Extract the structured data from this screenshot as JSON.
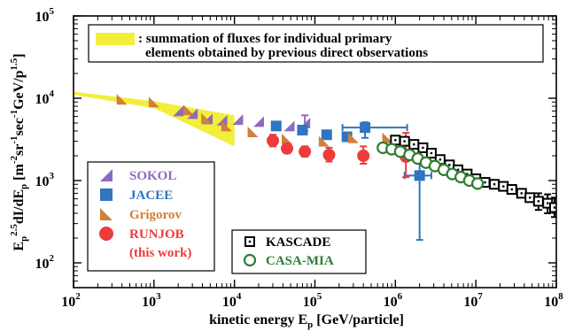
{
  "chart_data": {
    "type": "scatter",
    "xscale": "log",
    "yscale": "log",
    "xlim": [
      100,
      100000000
    ],
    "ylim": [
      50,
      100000
    ],
    "x_ticks": [
      "10^2",
      "10^3",
      "10^4",
      "10^5",
      "10^6",
      "10^7",
      "10^8"
    ],
    "y_ticks": [
      "10^2",
      "10^3",
      "10^4",
      "10^5"
    ],
    "xlabel": "kinetic energy E_p [GeV/particle]",
    "ylabel": "E_p^2.5 dI/dE_p [m^-2 sr^-1 sec^-1 GeV/p^1.5]",
    "band": {
      "label": ": summation of fluxes for individual primary elements obtained by previous direct observations",
      "color": "#f2ee3a",
      "upper": [
        [
          100,
          12000
        ],
        [
          1000,
          9200
        ],
        [
          10000,
          6200
        ]
      ],
      "lower": [
        [
          100,
          11000
        ],
        [
          1000,
          7600
        ],
        [
          10000,
          2600
        ]
      ]
    },
    "series": [
      {
        "name": "SOKOL",
        "marker": "triangle-ul",
        "color": "#8e6bbf",
        "points": [
          {
            "x": 2000,
            "y": 7000
          },
          {
            "x": 3000,
            "y": 6500
          },
          {
            "x": 4600,
            "y": 5600
          },
          {
            "x": 7000,
            "y": 5400
          },
          {
            "x": 11000,
            "y": 5500
          },
          {
            "x": 20000,
            "y": 5200
          },
          {
            "x": 48000,
            "y": 4600
          },
          {
            "x": 75000,
            "y": 5000,
            "err": [
              4000,
              6200
            ]
          }
        ]
      },
      {
        "name": "JACEE",
        "marker": "square",
        "color": "#2f75c0",
        "points": [
          {
            "x": 33000,
            "y": 4600
          },
          {
            "x": 70000,
            "y": 4100
          },
          {
            "x": 140000,
            "y": 3600
          },
          {
            "x": 250000,
            "y": 3400
          },
          {
            "x": 420000,
            "y": 4400,
            "err": [
              3300,
              5100
            ],
            "xerr": [
              220000,
              1400000
            ]
          },
          {
            "x": 2000000,
            "y": 1150,
            "err": [
              190,
              1800
            ],
            "xerr": [
              1300000,
              2800000
            ]
          }
        ]
      },
      {
        "name": "Grigorov",
        "marker": "triangle-lr",
        "color": "#d07f3c",
        "points": [
          {
            "x": 400,
            "y": 9700
          },
          {
            "x": 1000,
            "y": 9000
          },
          {
            "x": 2700,
            "y": 7200
          },
          {
            "x": 4500,
            "y": 5700
          },
          {
            "x": 8000,
            "y": 4600
          },
          {
            "x": 17000,
            "y": 3900
          },
          {
            "x": 45000,
            "y": 3200
          },
          {
            "x": 130000,
            "y": 3000
          },
          {
            "x": 300000,
            "y": 3300
          },
          {
            "x": 800000,
            "y": 3300
          }
        ]
      },
      {
        "name": "RUNJOB",
        "name2": "(this work)",
        "marker": "circle",
        "color": "#ee3b3b",
        "points": [
          {
            "x": 30000,
            "y": 3050,
            "err": [
              2600,
              3600
            ]
          },
          {
            "x": 45000,
            "y": 2450,
            "err": [
              2150,
              2800
            ]
          },
          {
            "x": 75000,
            "y": 2250,
            "err": [
              1950,
              2600
            ]
          },
          {
            "x": 150000,
            "y": 2050,
            "err": [
              1700,
              2500
            ]
          },
          {
            "x": 400000,
            "y": 2000,
            "err": [
              1600,
              2600
            ]
          },
          {
            "x": 1350000,
            "y": 1950,
            "err": [
              1100,
              3800
            ]
          }
        ]
      },
      {
        "name": "KASCADE",
        "marker": "square-dot",
        "color": "#000000",
        "points": [
          {
            "x": 1000000,
            "y": 3100
          },
          {
            "x": 1300000,
            "y": 3000
          },
          {
            "x": 1700000,
            "y": 2750
          },
          {
            "x": 2200000,
            "y": 2500
          },
          {
            "x": 2800000,
            "y": 2150
          },
          {
            "x": 3600000,
            "y": 1800
          },
          {
            "x": 4700000,
            "y": 1550
          },
          {
            "x": 6000000,
            "y": 1350
          },
          {
            "x": 7800000,
            "y": 1200
          },
          {
            "x": 10000000,
            "y": 1050
          },
          {
            "x": 13000000,
            "y": 950
          },
          {
            "x": 17000000,
            "y": 900
          },
          {
            "x": 22000000,
            "y": 850
          },
          {
            "x": 28000000,
            "y": 780
          },
          {
            "x": 37000000,
            "y": 700
          },
          {
            "x": 47000000,
            "y": 620
          },
          {
            "x": 60000000,
            "y": 560,
            "err": [
              440,
              700
            ]
          },
          {
            "x": 78000000,
            "y": 530,
            "err": [
              400,
              680
            ]
          },
          {
            "x": 95000000,
            "y": 470,
            "err": [
              360,
              620
            ]
          }
        ]
      },
      {
        "name": "CASA-MIA",
        "marker": "circle-open",
        "color": "#2e7d32",
        "points": [
          {
            "x": 700000,
            "y": 2500
          },
          {
            "x": 900000,
            "y": 2400
          },
          {
            "x": 1150000,
            "y": 2250
          },
          {
            "x": 1500000,
            "y": 2050
          },
          {
            "x": 1900000,
            "y": 1850
          },
          {
            "x": 2400000,
            "y": 1650
          },
          {
            "x": 3100000,
            "y": 1500
          },
          {
            "x": 4000000,
            "y": 1350
          },
          {
            "x": 5100000,
            "y": 1200
          },
          {
            "x": 6500000,
            "y": 1100
          },
          {
            "x": 8300000,
            "y": 1000
          },
          {
            "x": 10500000,
            "y": 920
          }
        ]
      }
    ]
  }
}
